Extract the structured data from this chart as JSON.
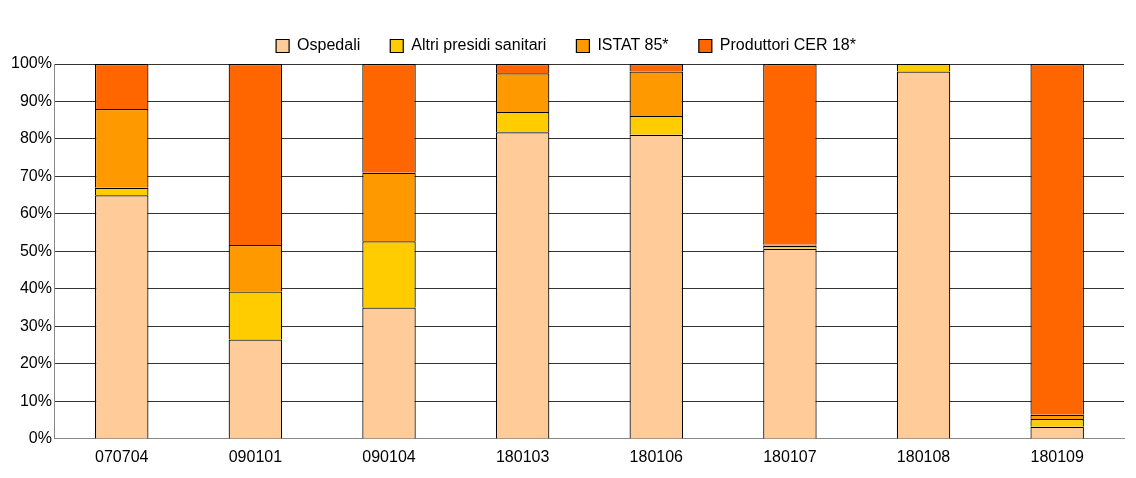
{
  "chart_data": {
    "type": "bar",
    "stacked": true,
    "categories": [
      "070704",
      "090101",
      "090104",
      "180103",
      "180106",
      "180107",
      "180108",
      "180109"
    ],
    "series": [
      {
        "name": "Ospedali",
        "color": "#ffcc99",
        "values": [
          65,
          26.5,
          35,
          81.8,
          81.1,
          50.7,
          98,
          3.2
        ]
      },
      {
        "name": "Altri presidi sanitari",
        "color": "#ffcc00",
        "values": [
          2,
          12.8,
          17.7,
          5.4,
          5,
          0.8,
          2,
          2.1
        ]
      },
      {
        "name": "ISTAT 85*",
        "color": "#ff9900",
        "values": [
          21,
          12.4,
          18.3,
          10.3,
          11.9,
          0.3,
          0,
          1.1
        ]
      },
      {
        "name": "Produttori CER 18*",
        "color": "#ff6600",
        "values": [
          12,
          48.3,
          29,
          2.5,
          2,
          48.2,
          0,
          93.6
        ]
      }
    ],
    "ylim": [
      0,
      100
    ],
    "yticks": [
      {
        "value": 0,
        "label": "0%"
      },
      {
        "value": 10,
        "label": "10%"
      },
      {
        "value": 20,
        "label": "20%"
      },
      {
        "value": 30,
        "label": "30%"
      },
      {
        "value": 40,
        "label": "40%"
      },
      {
        "value": 50,
        "label": "50%"
      },
      {
        "value": 60,
        "label": "60%"
      },
      {
        "value": 70,
        "label": "70%"
      },
      {
        "value": 80,
        "label": "80%"
      },
      {
        "value": 90,
        "label": "90%"
      },
      {
        "value": 100,
        "label": "100%"
      }
    ],
    "grid": "y",
    "legend": "top"
  }
}
